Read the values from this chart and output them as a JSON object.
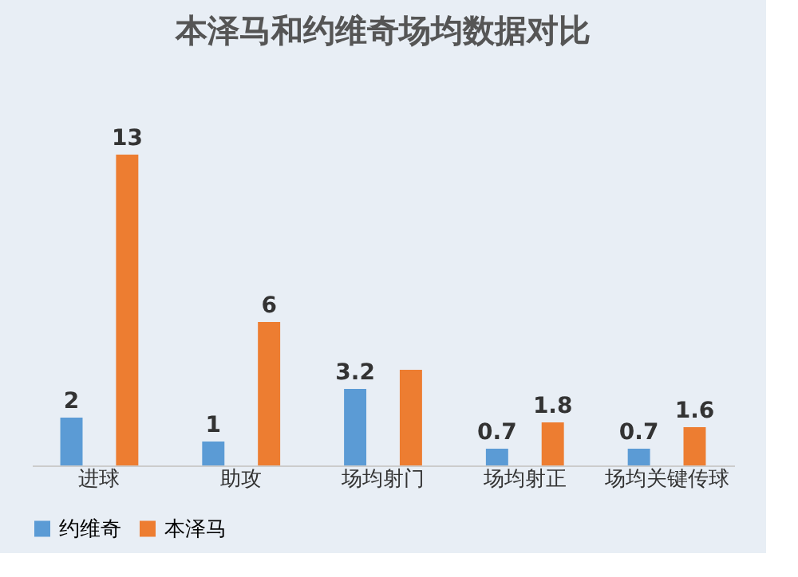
{
  "chart_data": {
    "type": "bar",
    "title": "本泽马和约维奇场均数据对比",
    "categories": [
      "进球",
      "助攻",
      "场均射门",
      "场均射正",
      "场均关键传球"
    ],
    "series": [
      {
        "name": "约维奇",
        "color": "#5b9bd5",
        "values": [
          2,
          1,
          3.2,
          0.7,
          0.7
        ],
        "value_labels": [
          "2",
          "1",
          "3.2",
          "0.7",
          "0.7"
        ]
      },
      {
        "name": "本泽马",
        "color": "#ed7d31",
        "values": [
          13,
          6,
          4,
          1.8,
          1.6
        ],
        "value_labels": [
          "13",
          "6",
          null,
          "1.8",
          "1.6"
        ]
      }
    ],
    "legend": "bottom",
    "grid": false
  }
}
